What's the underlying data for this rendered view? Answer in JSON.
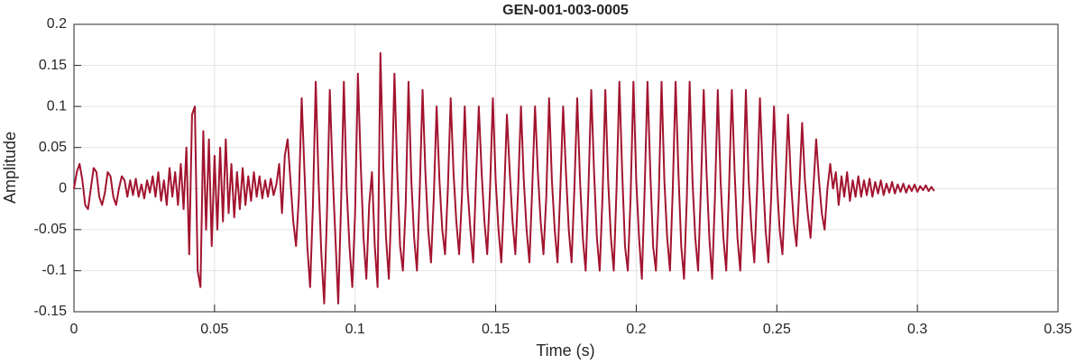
{
  "chart_data": {
    "type": "line",
    "title": "GEN-001-003-0005",
    "xlabel": "Time (s)",
    "ylabel": "Amplitude",
    "color": "#a2142f",
    "grid": true,
    "xlim": [
      0,
      0.35
    ],
    "xticks": [
      0,
      0.05,
      0.1,
      0.15,
      0.2,
      0.25,
      0.3,
      0.35
    ],
    "ylim": [
      -0.15,
      0.2
    ],
    "yticks": [
      -0.15,
      -0.1,
      -0.05,
      0,
      0.05,
      0.1,
      0.15,
      0.2
    ],
    "x": [
      0,
      0.001,
      0.002,
      0.003,
      0.004,
      0.005,
      0.006,
      0.007,
      0.008,
      0.009,
      0.01,
      0.011,
      0.012,
      0.013,
      0.014,
      0.015,
      0.016,
      0.017,
      0.018,
      0.019,
      0.02,
      0.021,
      0.022,
      0.023,
      0.024,
      0.025,
      0.026,
      0.027,
      0.028,
      0.029,
      0.03,
      0.031,
      0.032,
      0.033,
      0.034,
      0.035,
      0.036,
      0.037,
      0.038,
      0.039,
      0.04,
      0.041,
      0.042,
      0.043,
      0.044,
      0.045,
      0.046,
      0.047,
      0.048,
      0.049,
      0.05,
      0.051,
      0.052,
      0.053,
      0.054,
      0.055,
      0.056,
      0.057,
      0.058,
      0.059,
      0.06,
      0.061,
      0.062,
      0.063,
      0.064,
      0.065,
      0.066,
      0.067,
      0.068,
      0.069,
      0.07,
      0.071,
      0.072,
      0.073,
      0.074,
      0.075,
      0.076,
      0.077,
      0.078,
      0.079,
      0.08,
      0.081,
      0.082,
      0.083,
      0.084,
      0.085,
      0.086,
      0.087,
      0.088,
      0.089,
      0.09,
      0.091,
      0.092,
      0.093,
      0.094,
      0.095,
      0.096,
      0.097,
      0.098,
      0.099,
      0.1,
      0.101,
      0.102,
      0.103,
      0.104,
      0.105,
      0.106,
      0.107,
      0.108,
      0.109,
      0.11,
      0.111,
      0.112,
      0.113,
      0.114,
      0.115,
      0.116,
      0.117,
      0.118,
      0.119,
      0.12,
      0.121,
      0.122,
      0.123,
      0.124,
      0.125,
      0.126,
      0.127,
      0.128,
      0.129,
      0.13,
      0.131,
      0.132,
      0.133,
      0.134,
      0.135,
      0.136,
      0.137,
      0.138,
      0.139,
      0.14,
      0.141,
      0.142,
      0.143,
      0.144,
      0.145,
      0.146,
      0.147,
      0.148,
      0.149,
      0.15,
      0.151,
      0.152,
      0.153,
      0.154,
      0.155,
      0.156,
      0.157,
      0.158,
      0.159,
      0.16,
      0.161,
      0.162,
      0.163,
      0.164,
      0.165,
      0.166,
      0.167,
      0.168,
      0.169,
      0.17,
      0.171,
      0.172,
      0.173,
      0.174,
      0.175,
      0.176,
      0.177,
      0.178,
      0.179,
      0.18,
      0.181,
      0.182,
      0.183,
      0.184,
      0.185,
      0.186,
      0.187,
      0.188,
      0.189,
      0.19,
      0.191,
      0.192,
      0.193,
      0.194,
      0.195,
      0.196,
      0.197,
      0.198,
      0.199,
      0.2,
      0.201,
      0.202,
      0.203,
      0.204,
      0.205,
      0.206,
      0.207,
      0.208,
      0.209,
      0.21,
      0.211,
      0.212,
      0.213,
      0.214,
      0.215,
      0.216,
      0.217,
      0.218,
      0.219,
      0.22,
      0.221,
      0.222,
      0.223,
      0.224,
      0.225,
      0.226,
      0.227,
      0.228,
      0.229,
      0.23,
      0.231,
      0.232,
      0.233,
      0.234,
      0.235,
      0.236,
      0.237,
      0.238,
      0.239,
      0.24,
      0.241,
      0.242,
      0.243,
      0.244,
      0.245,
      0.246,
      0.247,
      0.248,
      0.249,
      0.25,
      0.251,
      0.252,
      0.253,
      0.254,
      0.255,
      0.256,
      0.257,
      0.258,
      0.259,
      0.26,
      0.261,
      0.262,
      0.263,
      0.264,
      0.265,
      0.266,
      0.267,
      0.268,
      0.269,
      0.27,
      0.271,
      0.272,
      0.273,
      0.274,
      0.275,
      0.276,
      0.277,
      0.278,
      0.279,
      0.28,
      0.281,
      0.282,
      0.283,
      0.284,
      0.285,
      0.286,
      0.287,
      0.288,
      0.289,
      0.29,
      0.291,
      0.292,
      0.293,
      0.294,
      0.295,
      0.296,
      0.297,
      0.298,
      0.299,
      0.3,
      0.301,
      0.302,
      0.303,
      0.304,
      0.305,
      0.306
    ],
    "values": [
      0,
      0.02,
      0.03,
      0.01,
      -0.02,
      -0.025,
      0,
      0.025,
      0.02,
      -0.01,
      -0.02,
      -0.005,
      0.02,
      0.015,
      -0.01,
      -0.02,
      0,
      0.015,
      0.01,
      -0.01,
      0.01,
      -0.008,
      0.012,
      -0.01,
      0.005,
      -0.012,
      0.01,
      -0.005,
      0.015,
      -0.01,
      0.02,
      -0.015,
      0.01,
      -0.02,
      0.025,
      -0.01,
      0.02,
      -0.02,
      0.03,
      -0.025,
      0.05,
      -0.08,
      0.09,
      0.1,
      -0.1,
      -0.12,
      0.07,
      -0.05,
      0.06,
      -0.07,
      0.04,
      -0.05,
      0.05,
      -0.04,
      0.06,
      -0.03,
      0.03,
      -0.035,
      0.02,
      -0.025,
      0.025,
      -0.02,
      0.015,
      -0.015,
      0.02,
      -0.01,
      0.015,
      -0.012,
      0.01,
      -0.01,
      0.012,
      -0.008,
      0.005,
      0.03,
      -0.03,
      0.04,
      0.06,
      0.01,
      -0.04,
      -0.07,
      -0.01,
      0.11,
      0.02,
      -0.07,
      -0.12,
      -0.02,
      0.13,
      0.01,
      -0.08,
      -0.14,
      -0.03,
      0.12,
      0.02,
      -0.06,
      -0.14,
      -0.02,
      0.13,
      0,
      -0.07,
      -0.12,
      -0.03,
      0.14,
      0.03,
      -0.06,
      -0.11,
      -0.02,
      0.02,
      -0.07,
      -0.12,
      0.165,
      0.03,
      -0.06,
      -0.11,
      -0.01,
      0.14,
      0.02,
      -0.07,
      -0.1,
      -0.02,
      0.13,
      0.01,
      -0.06,
      -0.1,
      0,
      0.12,
      0.02,
      -0.05,
      -0.09,
      -0.01,
      0.1,
      0.01,
      -0.05,
      -0.08,
      0,
      0.11,
      0.02,
      -0.04,
      -0.08,
      -0.01,
      0.1,
      0,
      -0.05,
      -0.09,
      0.01,
      0.1,
      0.02,
      -0.04,
      -0.08,
      0,
      0.11,
      0.01,
      -0.05,
      -0.09,
      -0.01,
      0.09,
      0.02,
      -0.04,
      -0.08,
      0,
      0.1,
      0.01,
      -0.05,
      -0.09,
      0,
      0.1,
      0.02,
      -0.04,
      -0.08,
      -0.01,
      0.11,
      0.01,
      -0.05,
      -0.09,
      0,
      0.1,
      0.02,
      -0.05,
      -0.09,
      0,
      0.11,
      0.01,
      -0.06,
      -0.1,
      0,
      0.12,
      0.02,
      -0.06,
      -0.1,
      -0.01,
      0.12,
      0.01,
      -0.06,
      -0.1,
      0,
      0.13,
      0.02,
      -0.07,
      -0.1,
      -0.01,
      0.13,
      0.01,
      -0.06,
      -0.11,
      0,
      0.13,
      0.02,
      -0.07,
      -0.1,
      -0.01,
      0.13,
      0.01,
      -0.06,
      -0.1,
      0,
      0.13,
      0.02,
      -0.07,
      -0.11,
      -0.01,
      0.13,
      0.01,
      -0.06,
      -0.1,
      0,
      0.12,
      0.02,
      -0.06,
      -0.11,
      -0.01,
      0.12,
      0.01,
      -0.06,
      -0.1,
      0,
      0.12,
      0.02,
      -0.06,
      -0.1,
      -0.01,
      0.12,
      0.01,
      -0.05,
      -0.09,
      0,
      0.11,
      0.02,
      -0.05,
      -0.09,
      -0.01,
      0.1,
      0.01,
      -0.05,
      -0.08,
      0,
      0.09,
      0.01,
      -0.04,
      -0.07,
      0,
      0.08,
      0.01,
      -0.03,
      -0.06,
      0,
      0.06,
      0.01,
      -0.03,
      -0.05,
      0,
      0.03,
      0,
      0.02,
      -0.02,
      0.015,
      -0.01,
      0.02,
      -0.015,
      0.01,
      -0.01,
      0.015,
      -0.01,
      0.01,
      -0.008,
      0.012,
      -0.01,
      0.008,
      -0.006,
      0.01,
      -0.008,
      0.006,
      -0.005,
      0.008,
      -0.006,
      0.005,
      -0.004,
      0.006,
      -0.005,
      0.004,
      -0.003,
      0.005,
      -0.004,
      0.003,
      -0.002,
      0.004,
      -0.003,
      0.002,
      -0.003
    ]
  }
}
